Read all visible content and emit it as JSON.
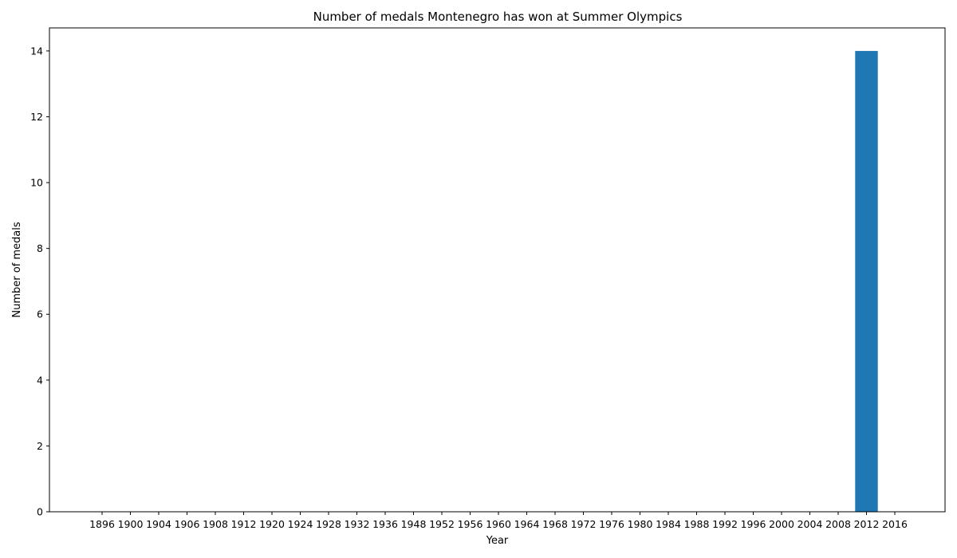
{
  "chart_data": {
    "type": "bar",
    "title": "Number of medals Montenegro has won at Summer Olympics",
    "xlabel": "Year",
    "ylabel": "Number of medals",
    "categories": [
      "1896",
      "1900",
      "1904",
      "1906",
      "1908",
      "1912",
      "1920",
      "1924",
      "1928",
      "1932",
      "1936",
      "1948",
      "1952",
      "1956",
      "1960",
      "1964",
      "1968",
      "1972",
      "1976",
      "1980",
      "1984",
      "1988",
      "1992",
      "1996",
      "2000",
      "2004",
      "2008",
      "2012",
      "2016"
    ],
    "values": [
      0,
      0,
      0,
      0,
      0,
      0,
      0,
      0,
      0,
      0,
      0,
      0,
      0,
      0,
      0,
      0,
      0,
      0,
      0,
      0,
      0,
      0,
      0,
      0,
      0,
      0,
      0,
      14,
      0
    ],
    "ylim": [
      0,
      14.7
    ],
    "yticks": [
      0,
      2,
      4,
      6,
      8,
      10,
      12,
      14
    ],
    "bar_color": "#1f77b4",
    "grid": false,
    "legend": "none"
  }
}
